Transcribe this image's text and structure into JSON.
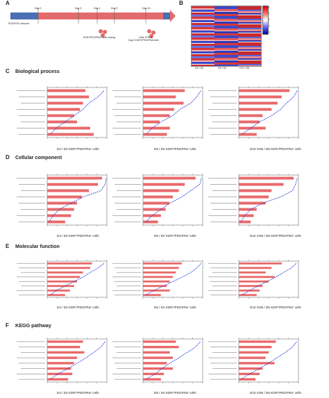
{
  "panel_letters": {
    "a": "A",
    "b": "B",
    "c": "C",
    "d": "D",
    "e": "E",
    "f": "F"
  },
  "section_titles": {
    "c": "Biological process",
    "d": "Cellular component",
    "e": "Molecular function",
    "f": "KEGG pathway"
  },
  "timeline": {
    "start": "Day 0",
    "mid": [
      "Day 3",
      "Day 4",
      "Day 5"
    ],
    "end": "Day 10",
    "left_note": "ESC/iPSC induced",
    "sort_note": "KDR*/PDGFRa* cells sorting",
    "bottom_note": "Day 5 KDR*/PDGFRa*cells",
    "right_note": "CMs: iPSCs"
  },
  "heatmap": {
    "columns": [
      "D4 / D3",
      "D5 / D4",
      "D10 / D5"
    ],
    "legend": [
      "2",
      "1",
      "0",
      "-1",
      "-2"
    ]
  },
  "colors": {
    "bar": "#e8696b",
    "line": "#1d2fd6"
  },
  "captions": {
    "c": [
      "D4 / D3 KDR*/PDGFRa* cells",
      "D5 / D4 KDR*/PDGFRa* cells",
      "D10 CMs / D5 KDR*/PDGFRa* cells"
    ],
    "d": [
      "D4 / D3 KDR*/PDGFRa* cells",
      "D5 / D4 KDR*/PDGFRa* cells",
      "D10 CMs / D5 KDR*/PDGFRa* cells"
    ],
    "e": [
      "D4 / D3 KDR*/PDGFRa* cells",
      "D5 / D4 KDR*/PDGFRa* cells",
      "D10 CMs / D5 KDR*/PDGFRa* cells"
    ],
    "f": [
      "D4 / D3 KDR*/PDGFRa* cells",
      "D5 / D4 KDR*/PDGFRa* cells",
      "D10 CMs / D5 KDR*/PDGFRa* cells"
    ]
  },
  "chart_data": [
    {
      "type": "bar",
      "section": "c",
      "index": 0,
      "values": [
        0.64,
        0.7,
        0.6,
        0.55,
        0.45,
        0.5,
        0.72,
        0.78
      ],
      "line": [
        0.95,
        0.85,
        0.7,
        0.6,
        0.45,
        0.3,
        0.15,
        0.05
      ]
    },
    {
      "type": "bar",
      "section": "c",
      "index": 1,
      "values": [
        0.7,
        0.55,
        0.68,
        0.52,
        0.45,
        0.28,
        0.45,
        0.4
      ],
      "line": [
        0.97,
        0.9,
        0.8,
        0.62,
        0.5,
        0.3,
        0.15,
        0.05
      ]
    },
    {
      "type": "bar",
      "section": "c",
      "index": 2,
      "values": [
        0.85,
        0.72,
        0.65,
        0.55,
        0.4,
        0.35,
        0.45,
        0.3
      ],
      "line": [
        0.98,
        0.92,
        0.8,
        0.7,
        0.55,
        0.35,
        0.2,
        0.05
      ]
    },
    {
      "type": "bar",
      "section": "d",
      "index": 0,
      "values": [
        0.92,
        0.85,
        0.7,
        0.58,
        0.5,
        0.45,
        0.4,
        0.3
      ],
      "line": [
        0.99,
        0.97,
        0.9,
        0.6,
        0.4,
        0.2,
        0.1,
        0.03
      ]
    },
    {
      "type": "bar",
      "section": "d",
      "index": 1,
      "values": [
        0.88,
        0.7,
        0.6,
        0.5,
        0.44,
        0.38,
        0.3,
        0.25
      ],
      "line": [
        0.98,
        0.95,
        0.8,
        0.65,
        0.45,
        0.3,
        0.15,
        0.05
      ]
    },
    {
      "type": "bar",
      "section": "d",
      "index": 2,
      "values": [
        0.92,
        0.75,
        0.55,
        0.5,
        0.45,
        0.3,
        0.25,
        0.2
      ],
      "line": [
        0.98,
        0.95,
        0.9,
        0.7,
        0.4,
        0.2,
        0.1,
        0.03
      ]
    },
    {
      "type": "bar",
      "section": "e",
      "index": 0,
      "values": [
        0.75,
        0.72,
        0.6,
        0.55,
        0.5,
        0.45,
        0.38,
        0.3
      ],
      "line": [
        0.95,
        0.85,
        0.72,
        0.6,
        0.45,
        0.3,
        0.15,
        0.05
      ]
    },
    {
      "type": "bar",
      "section": "e",
      "index": 1,
      "values": [
        0.65,
        0.6,
        0.55,
        0.5,
        0.45,
        0.4,
        0.45,
        0.3
      ],
      "line": [
        0.97,
        0.9,
        0.8,
        0.66,
        0.5,
        0.34,
        0.18,
        0.05
      ]
    },
    {
      "type": "bar",
      "section": "e",
      "index": 2,
      "values": [
        0.72,
        0.55,
        0.45,
        0.6,
        0.5,
        0.4,
        0.35,
        0.3
      ],
      "line": [
        0.96,
        0.88,
        0.75,
        0.62,
        0.48,
        0.32,
        0.18,
        0.05
      ]
    },
    {
      "type": "bar",
      "section": "f",
      "index": 0,
      "values": [
        0.6,
        0.55,
        0.62,
        0.5,
        0.45,
        0.4,
        0.42,
        0.35
      ],
      "line": [
        0.97,
        0.9,
        0.78,
        0.65,
        0.5,
        0.35,
        0.18,
        0.05
      ]
    },
    {
      "type": "bar",
      "section": "f",
      "index": 1,
      "values": [
        0.55,
        0.6,
        0.45,
        0.5,
        0.4,
        0.5,
        0.35,
        0.3
      ],
      "line": [
        0.96,
        0.88,
        0.74,
        0.6,
        0.45,
        0.32,
        0.2,
        0.05
      ]
    },
    {
      "type": "bar",
      "section": "f",
      "index": 2,
      "values": [
        0.62,
        0.55,
        0.5,
        0.45,
        0.6,
        0.4,
        0.35,
        0.28
      ],
      "line": [
        0.97,
        0.9,
        0.78,
        0.64,
        0.5,
        0.35,
        0.18,
        0.04
      ]
    }
  ]
}
